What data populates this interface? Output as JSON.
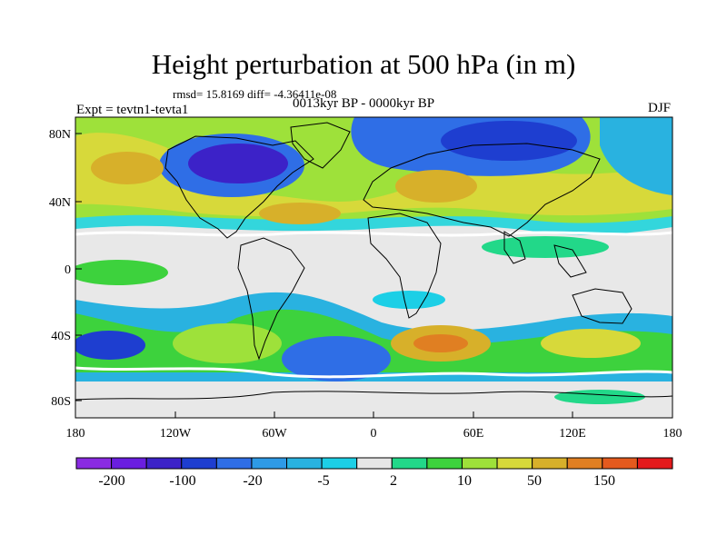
{
  "title": "Height perturbation at 500 hPa (in m)",
  "stats": "rmsd= 15.8169 diff= -4.36411e-08",
  "expt": "Expt = tevtn1-tevta1",
  "period": "0013kyr BP - 0000kyr BP",
  "season": "DJF",
  "lat_labels": [
    "80N",
    "40N",
    "0",
    "40S",
    "80S"
  ],
  "lon_labels": [
    "180",
    "120W",
    "60W",
    "0",
    "60E",
    "120E",
    "180"
  ],
  "colorbar": {
    "labels": [
      "-200",
      "-100",
      "-20",
      "-5",
      "2",
      "10",
      "50",
      "150"
    ],
    "colors": [
      "#8a2be2",
      "#6a1ee0",
      "#3c22c8",
      "#1e3ed0",
      "#2f6ee6",
      "#2e9ae6",
      "#29b2e0",
      "#1ccfe6",
      "#e6e6e6",
      "#22d889",
      "#3dd23d",
      "#9ee13a",
      "#d7d93a",
      "#d7b02a",
      "#e07f22",
      "#e45a1e",
      "#e31a1c"
    ]
  },
  "colors": {
    "border": "#000000",
    "background": "#ffffff",
    "coast": "#000000"
  }
}
